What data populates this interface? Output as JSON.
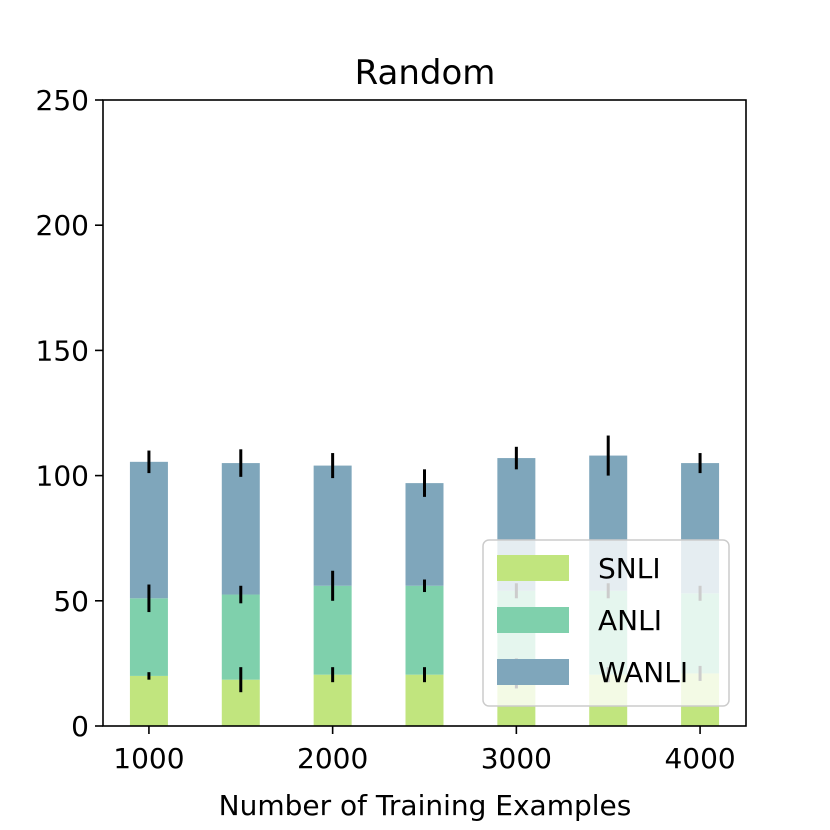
{
  "chart_data": {
    "type": "bar",
    "stacked": true,
    "title": "Random",
    "xlabel": "Number of Training Examples",
    "ylabel": "",
    "x": [
      1000,
      1500,
      2000,
      2500,
      3000,
      3500,
      4000
    ],
    "xticks": [
      "1000",
      "2000",
      "3000",
      "4000"
    ],
    "xtick_values": [
      1000,
      2000,
      3000,
      4000
    ],
    "yticks": [
      "0",
      "50",
      "100",
      "150",
      "200",
      "250"
    ],
    "ytick_values": [
      0,
      50,
      100,
      150,
      200,
      250
    ],
    "xlim": [
      750,
      4250
    ],
    "ylim": [
      0,
      250
    ],
    "grid": false,
    "legend_position": "lower-right",
    "series": [
      {
        "name": "SNLI",
        "color": "#c1e57e",
        "values": [
          20,
          18.5,
          20.5,
          20.5,
          21,
          20.5,
          21
        ],
        "errors": [
          1.5,
          5,
          3,
          3,
          6,
          3,
          3
        ]
      },
      {
        "name": "ANLI",
        "color": "#7fd0ac",
        "values": [
          31,
          34,
          35.5,
          35.5,
          33,
          33.5,
          32
        ],
        "errors": [
          5.5,
          3.5,
          6,
          2.5,
          3,
          3,
          3
        ]
      },
      {
        "name": "WANLI",
        "color": "#7fa6bb",
        "values": [
          54.5,
          52.5,
          48,
          41,
          53,
          54,
          52
        ],
        "errors": [
          4.5,
          5.5,
          5,
          5.5,
          4.5,
          8,
          4
        ]
      }
    ]
  }
}
